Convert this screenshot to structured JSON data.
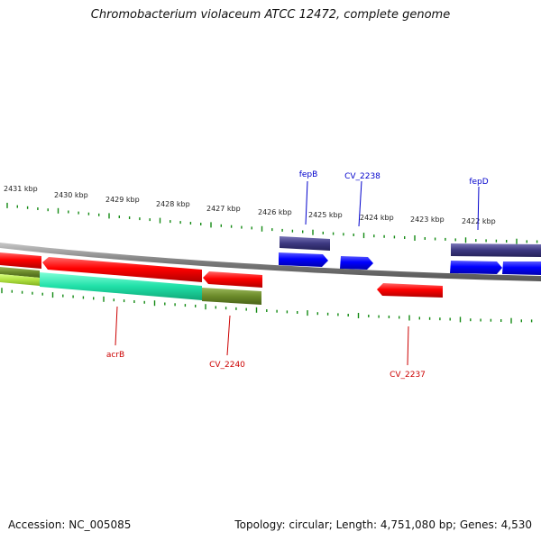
{
  "title": "Chromobacterium violaceum ATCC 12472, complete genome",
  "footer": {
    "accession": "Accession: NC_005085",
    "summary": "Topology: circular; Length: 4,751,080 bp; Genes: 4,530"
  },
  "scale_labels": [
    "2431 kbp",
    "2430 kbp",
    "2429 kbp",
    "2428 kbp",
    "2427 kbp",
    "2426 kbp",
    "2425 kbp",
    "2424 kbp",
    "2423 kbp",
    "2422 kbp"
  ],
  "genes_above": [
    {
      "name": "fepB",
      "color": "#0000cc"
    },
    {
      "name": "CV_2238",
      "color": "#0000cc"
    },
    {
      "name": "fepD",
      "color": "#0000cc"
    }
  ],
  "genes_below": [
    {
      "name": "acrB",
      "color": "#cc0000"
    },
    {
      "name": "CV_2240",
      "color": "#cc0000"
    },
    {
      "name": "CV_2237",
      "color": "#cc0000"
    }
  ],
  "colors": {
    "backbone": "#808080",
    "reverse_gene": "#ff0000",
    "forward_gene": "#0000ff",
    "upper_band": "#3c3880",
    "lower_band_green": "#6b8a2a",
    "lower_band_lime": "#b0e040",
    "lower_band_cyan": "#20e0a8",
    "tick": "#138a13"
  }
}
